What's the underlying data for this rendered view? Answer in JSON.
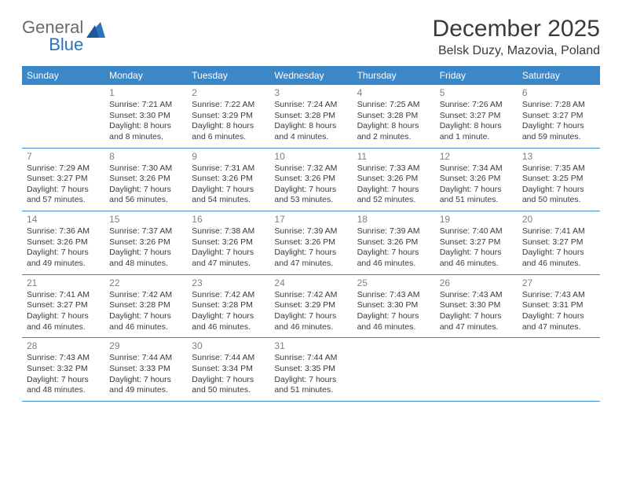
{
  "logo": {
    "word1": "General",
    "word2": "Blue"
  },
  "header": {
    "title": "December 2025",
    "subtitle": "Belsk Duzy, Mazovia, Poland"
  },
  "colors": {
    "header_bg": "#3b87c8",
    "header_text": "#ffffff",
    "daynum": "#7f7f7f",
    "body_text": "#3a3a3a",
    "logo_gray": "#6a6a6a",
    "logo_blue": "#2a74bd"
  },
  "daynames": [
    "Sunday",
    "Monday",
    "Tuesday",
    "Wednesday",
    "Thursday",
    "Friday",
    "Saturday"
  ],
  "weeks": [
    [
      {
        "n": "",
        "sunrise": "",
        "sunset": "",
        "daylight": ""
      },
      {
        "n": "1",
        "sunrise": "Sunrise: 7:21 AM",
        "sunset": "Sunset: 3:30 PM",
        "daylight": "Daylight: 8 hours and 8 minutes."
      },
      {
        "n": "2",
        "sunrise": "Sunrise: 7:22 AM",
        "sunset": "Sunset: 3:29 PM",
        "daylight": "Daylight: 8 hours and 6 minutes."
      },
      {
        "n": "3",
        "sunrise": "Sunrise: 7:24 AM",
        "sunset": "Sunset: 3:28 PM",
        "daylight": "Daylight: 8 hours and 4 minutes."
      },
      {
        "n": "4",
        "sunrise": "Sunrise: 7:25 AM",
        "sunset": "Sunset: 3:28 PM",
        "daylight": "Daylight: 8 hours and 2 minutes."
      },
      {
        "n": "5",
        "sunrise": "Sunrise: 7:26 AM",
        "sunset": "Sunset: 3:27 PM",
        "daylight": "Daylight: 8 hours and 1 minute."
      },
      {
        "n": "6",
        "sunrise": "Sunrise: 7:28 AM",
        "sunset": "Sunset: 3:27 PM",
        "daylight": "Daylight: 7 hours and 59 minutes."
      }
    ],
    [
      {
        "n": "7",
        "sunrise": "Sunrise: 7:29 AM",
        "sunset": "Sunset: 3:27 PM",
        "daylight": "Daylight: 7 hours and 57 minutes."
      },
      {
        "n": "8",
        "sunrise": "Sunrise: 7:30 AM",
        "sunset": "Sunset: 3:26 PM",
        "daylight": "Daylight: 7 hours and 56 minutes."
      },
      {
        "n": "9",
        "sunrise": "Sunrise: 7:31 AM",
        "sunset": "Sunset: 3:26 PM",
        "daylight": "Daylight: 7 hours and 54 minutes."
      },
      {
        "n": "10",
        "sunrise": "Sunrise: 7:32 AM",
        "sunset": "Sunset: 3:26 PM",
        "daylight": "Daylight: 7 hours and 53 minutes."
      },
      {
        "n": "11",
        "sunrise": "Sunrise: 7:33 AM",
        "sunset": "Sunset: 3:26 PM",
        "daylight": "Daylight: 7 hours and 52 minutes."
      },
      {
        "n": "12",
        "sunrise": "Sunrise: 7:34 AM",
        "sunset": "Sunset: 3:26 PM",
        "daylight": "Daylight: 7 hours and 51 minutes."
      },
      {
        "n": "13",
        "sunrise": "Sunrise: 7:35 AM",
        "sunset": "Sunset: 3:25 PM",
        "daylight": "Daylight: 7 hours and 50 minutes."
      }
    ],
    [
      {
        "n": "14",
        "sunrise": "Sunrise: 7:36 AM",
        "sunset": "Sunset: 3:26 PM",
        "daylight": "Daylight: 7 hours and 49 minutes."
      },
      {
        "n": "15",
        "sunrise": "Sunrise: 7:37 AM",
        "sunset": "Sunset: 3:26 PM",
        "daylight": "Daylight: 7 hours and 48 minutes."
      },
      {
        "n": "16",
        "sunrise": "Sunrise: 7:38 AM",
        "sunset": "Sunset: 3:26 PM",
        "daylight": "Daylight: 7 hours and 47 minutes."
      },
      {
        "n": "17",
        "sunrise": "Sunrise: 7:39 AM",
        "sunset": "Sunset: 3:26 PM",
        "daylight": "Daylight: 7 hours and 47 minutes."
      },
      {
        "n": "18",
        "sunrise": "Sunrise: 7:39 AM",
        "sunset": "Sunset: 3:26 PM",
        "daylight": "Daylight: 7 hours and 46 minutes."
      },
      {
        "n": "19",
        "sunrise": "Sunrise: 7:40 AM",
        "sunset": "Sunset: 3:27 PM",
        "daylight": "Daylight: 7 hours and 46 minutes."
      },
      {
        "n": "20",
        "sunrise": "Sunrise: 7:41 AM",
        "sunset": "Sunset: 3:27 PM",
        "daylight": "Daylight: 7 hours and 46 minutes."
      }
    ],
    [
      {
        "n": "21",
        "sunrise": "Sunrise: 7:41 AM",
        "sunset": "Sunset: 3:27 PM",
        "daylight": "Daylight: 7 hours and 46 minutes."
      },
      {
        "n": "22",
        "sunrise": "Sunrise: 7:42 AM",
        "sunset": "Sunset: 3:28 PM",
        "daylight": "Daylight: 7 hours and 46 minutes."
      },
      {
        "n": "23",
        "sunrise": "Sunrise: 7:42 AM",
        "sunset": "Sunset: 3:28 PM",
        "daylight": "Daylight: 7 hours and 46 minutes."
      },
      {
        "n": "24",
        "sunrise": "Sunrise: 7:42 AM",
        "sunset": "Sunset: 3:29 PM",
        "daylight": "Daylight: 7 hours and 46 minutes."
      },
      {
        "n": "25",
        "sunrise": "Sunrise: 7:43 AM",
        "sunset": "Sunset: 3:30 PM",
        "daylight": "Daylight: 7 hours and 46 minutes."
      },
      {
        "n": "26",
        "sunrise": "Sunrise: 7:43 AM",
        "sunset": "Sunset: 3:30 PM",
        "daylight": "Daylight: 7 hours and 47 minutes."
      },
      {
        "n": "27",
        "sunrise": "Sunrise: 7:43 AM",
        "sunset": "Sunset: 3:31 PM",
        "daylight": "Daylight: 7 hours and 47 minutes."
      }
    ],
    [
      {
        "n": "28",
        "sunrise": "Sunrise: 7:43 AM",
        "sunset": "Sunset: 3:32 PM",
        "daylight": "Daylight: 7 hours and 48 minutes."
      },
      {
        "n": "29",
        "sunrise": "Sunrise: 7:44 AM",
        "sunset": "Sunset: 3:33 PM",
        "daylight": "Daylight: 7 hours and 49 minutes."
      },
      {
        "n": "30",
        "sunrise": "Sunrise: 7:44 AM",
        "sunset": "Sunset: 3:34 PM",
        "daylight": "Daylight: 7 hours and 50 minutes."
      },
      {
        "n": "31",
        "sunrise": "Sunrise: 7:44 AM",
        "sunset": "Sunset: 3:35 PM",
        "daylight": "Daylight: 7 hours and 51 minutes."
      },
      {
        "n": "",
        "sunrise": "",
        "sunset": "",
        "daylight": ""
      },
      {
        "n": "",
        "sunrise": "",
        "sunset": "",
        "daylight": ""
      },
      {
        "n": "",
        "sunrise": "",
        "sunset": "",
        "daylight": ""
      }
    ]
  ]
}
